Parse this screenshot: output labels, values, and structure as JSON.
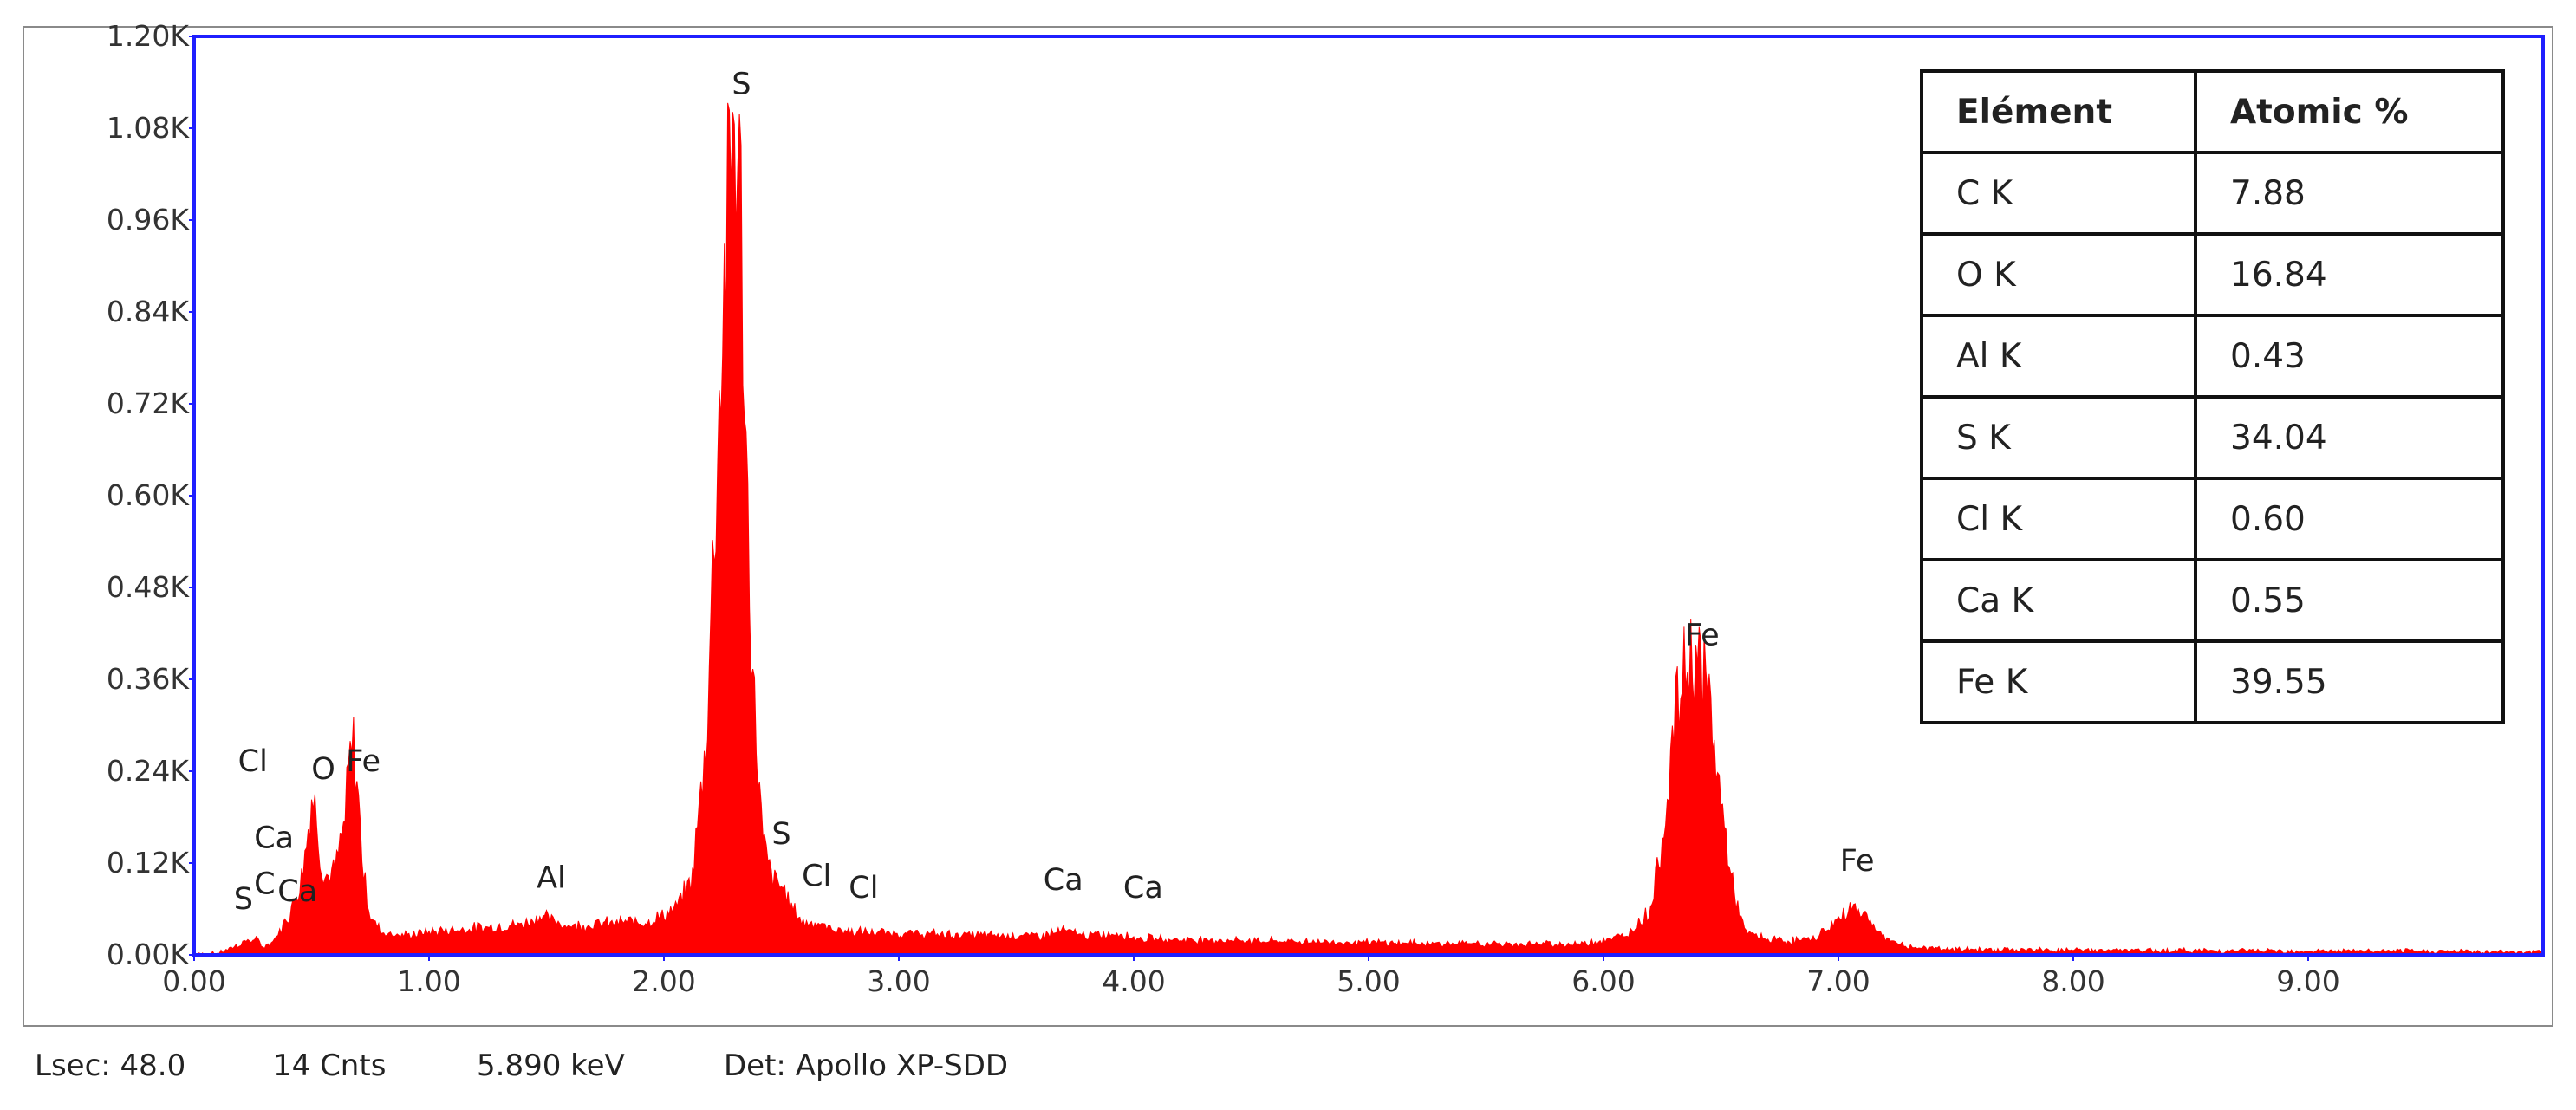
{
  "chart_data": {
    "type": "area",
    "title": "",
    "xlabel": "",
    "ylabel": "",
    "xlim": [
      0,
      10
    ],
    "ylim": [
      0,
      1200
    ],
    "x_ticks": [
      "0.00",
      "1.00",
      "2.00",
      "3.00",
      "4.00",
      "5.00",
      "6.00",
      "7.00",
      "8.00",
      "9.00"
    ],
    "y_ticks": [
      "0.00K",
      "0.12K",
      "0.24K",
      "0.36K",
      "0.48K",
      "0.60K",
      "0.72K",
      "0.84K",
      "0.96K",
      "1.08K",
      "1.20K"
    ],
    "series": [
      {
        "color": "#ff0000",
        "x": [
          0.0,
          0.1,
          0.15,
          0.18,
          0.22,
          0.26,
          0.3,
          0.34,
          0.4,
          0.45,
          0.48,
          0.5,
          0.52,
          0.54,
          0.56,
          0.6,
          0.64,
          0.66,
          0.68,
          0.7,
          0.72,
          0.75,
          0.8,
          0.9,
          1.0,
          1.2,
          1.4,
          1.48,
          1.52,
          1.6,
          1.8,
          1.95,
          2.05,
          2.12,
          2.18,
          2.22,
          2.26,
          2.28,
          2.3,
          2.31,
          2.33,
          2.35,
          2.38,
          2.42,
          2.46,
          2.5,
          2.55,
          2.6,
          2.62,
          2.7,
          2.8,
          3.0,
          3.3,
          3.6,
          3.7,
          3.8,
          3.95,
          4.0,
          4.2,
          4.6,
          5.0,
          5.5,
          5.9,
          6.1,
          6.2,
          6.25,
          6.3,
          6.35,
          6.4,
          6.45,
          6.5,
          6.55,
          6.6,
          6.7,
          6.8,
          6.9,
          7.0,
          7.06,
          7.12,
          7.2,
          7.3,
          7.5,
          8.0,
          9.0,
          10.0
        ],
        "y": [
          0,
          2,
          8,
          12,
          18,
          20,
          10,
          18,
          50,
          90,
          150,
          205,
          190,
          120,
          100,
          110,
          170,
          250,
          275,
          200,
          110,
          50,
          30,
          25,
          30,
          35,
          40,
          52,
          45,
          38,
          42,
          45,
          60,
          100,
          280,
          600,
          900,
          1000,
          1110,
          1050,
          950,
          650,
          350,
          150,
          100,
          90,
          60,
          40,
          45,
          35,
          30,
          28,
          26,
          25,
          32,
          25,
          28,
          22,
          20,
          18,
          16,
          14,
          14,
          25,
          60,
          150,
          300,
          380,
          395,
          330,
          200,
          90,
          30,
          20,
          18,
          22,
          45,
          65,
          50,
          20,
          10,
          7,
          6,
          5,
          4
        ]
      }
    ],
    "peak_labels": [
      {
        "text": "S",
        "x": 0.21,
        "y": 60
      },
      {
        "text": "C",
        "x": 0.3,
        "y": 80
      },
      {
        "text": "Ca",
        "x": 0.44,
        "y": 70
      },
      {
        "text": "Ca",
        "x": 0.34,
        "y": 140
      },
      {
        "text": "Cl",
        "x": 0.25,
        "y": 240
      },
      {
        "text": "O",
        "x": 0.55,
        "y": 230
      },
      {
        "text": "Fe",
        "x": 0.72,
        "y": 240
      },
      {
        "text": "Al",
        "x": 1.52,
        "y": 88
      },
      {
        "text": "S",
        "x": 2.33,
        "y": 1125
      },
      {
        "text": "S",
        "x": 2.5,
        "y": 145
      },
      {
        "text": "Cl",
        "x": 2.65,
        "y": 90
      },
      {
        "text": "Cl",
        "x": 2.85,
        "y": 75
      },
      {
        "text": "Ca",
        "x": 3.7,
        "y": 85
      },
      {
        "text": "Ca",
        "x": 4.04,
        "y": 75
      },
      {
        "text": "Fe",
        "x": 6.42,
        "y": 405
      },
      {
        "text": "Fe",
        "x": 7.08,
        "y": 110
      }
    ]
  },
  "table": {
    "headers": [
      "Elément",
      "Atomic %"
    ],
    "rows": [
      [
        "C K",
        "7.88"
      ],
      [
        "O K",
        "16.84"
      ],
      [
        "Al K",
        "0.43"
      ],
      [
        "S K",
        "34.04"
      ],
      [
        "Cl K",
        "0.60"
      ],
      [
        "Ca K",
        "0.55"
      ],
      [
        "Fe K",
        "39.55"
      ]
    ]
  },
  "status_bar": {
    "lsec": "Lsec: 48.0",
    "counts": "14 Cnts",
    "energy": "5.890 keV",
    "detector": "Det: Apollo XP-SDD"
  },
  "colors": {
    "spectrum": "#ff0000",
    "plot_border": "#1f1fff",
    "frame_border": "#8a8a8a"
  }
}
